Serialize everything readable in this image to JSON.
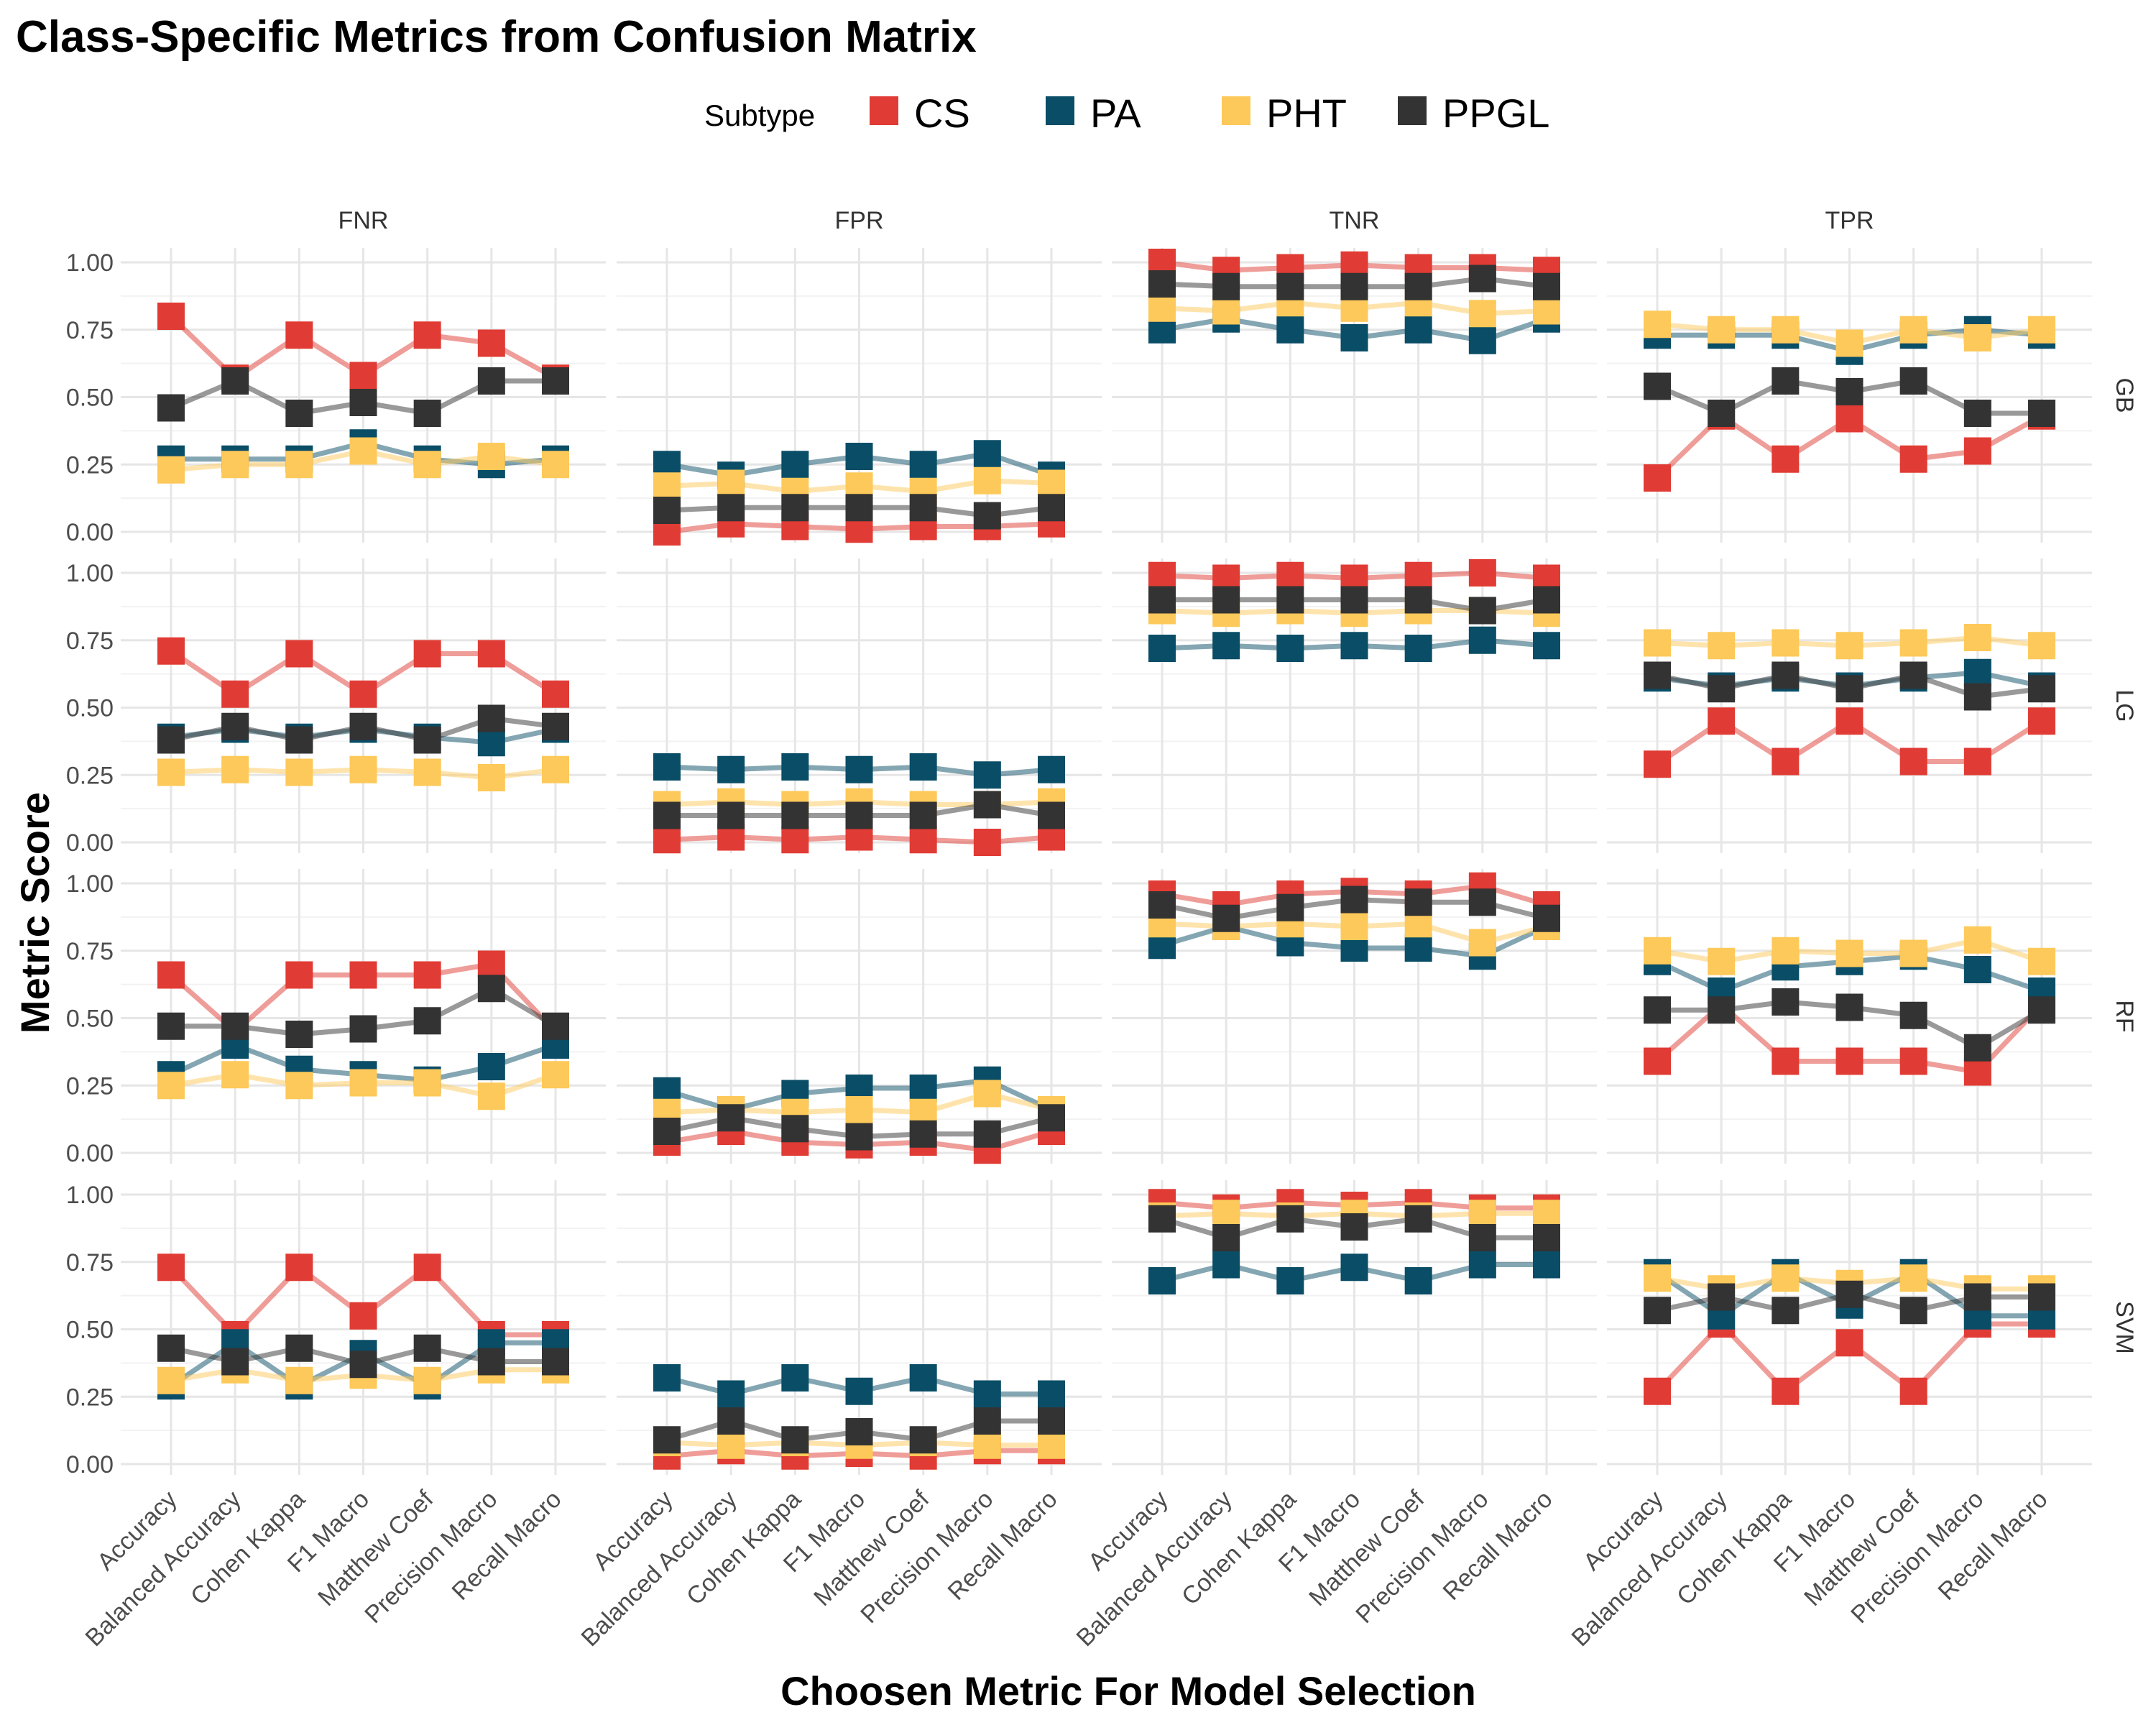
{
  "chart_data": {
    "type": "line",
    "title": "Class-Specific Metrics from Confusion Matrix",
    "xlabel": "Choosen Metric For Model Selection",
    "ylabel": "Metric Score",
    "ylim": [
      0,
      1
    ],
    "y_ticks": [
      "0.00",
      "0.25",
      "0.50",
      "0.75",
      "1.00"
    ],
    "grid": true,
    "legend": {
      "title": "Subtype",
      "placement": "top"
    },
    "categories": [
      "Accuracy",
      "Balanced Accuracy",
      "Cohen Kappa",
      "F1 Macro",
      "Matthew Coef",
      "Precision Macro",
      "Recall Macro"
    ],
    "facet_columns": [
      "FNR",
      "FPR",
      "TNR",
      "TPR"
    ],
    "facet_rows": [
      "GB",
      "LG",
      "RF",
      "SVM"
    ],
    "series": [
      {
        "name": "CS",
        "color": "#e03b34"
      },
      {
        "name": "PA",
        "color": "#0a4d66"
      },
      {
        "name": "PHT",
        "color": "#fdc95a"
      },
      {
        "name": "PPGL",
        "color": "#333333"
      }
    ],
    "values": {
      "GB": {
        "FNR": {
          "CS": [
            0.8,
            0.57,
            0.73,
            0.58,
            0.73,
            0.7,
            0.57
          ],
          "PA": [
            0.27,
            0.27,
            0.27,
            0.33,
            0.27,
            0.25,
            0.27
          ],
          "PHT": [
            0.23,
            0.25,
            0.25,
            0.3,
            0.25,
            0.28,
            0.25
          ],
          "PPGL": [
            0.46,
            0.56,
            0.44,
            0.48,
            0.44,
            0.56,
            0.56
          ]
        },
        "FPR": {
          "CS": [
            0.0,
            0.03,
            0.02,
            0.01,
            0.02,
            0.02,
            0.03
          ],
          "PA": [
            0.25,
            0.21,
            0.25,
            0.28,
            0.25,
            0.29,
            0.21
          ],
          "PHT": [
            0.17,
            0.18,
            0.15,
            0.17,
            0.15,
            0.19,
            0.18
          ],
          "PPGL": [
            0.08,
            0.09,
            0.09,
            0.09,
            0.09,
            0.06,
            0.09
          ]
        },
        "TNR": {
          "CS": [
            1.0,
            0.97,
            0.98,
            0.99,
            0.98,
            0.98,
            0.97
          ],
          "PA": [
            0.75,
            0.79,
            0.75,
            0.72,
            0.75,
            0.71,
            0.79
          ],
          "PHT": [
            0.83,
            0.82,
            0.85,
            0.83,
            0.85,
            0.81,
            0.82
          ],
          "PPGL": [
            0.92,
            0.91,
            0.91,
            0.91,
            0.91,
            0.94,
            0.91
          ]
        },
        "TPR": {
          "CS": [
            0.2,
            0.43,
            0.27,
            0.42,
            0.27,
            0.3,
            0.43
          ],
          "PA": [
            0.73,
            0.73,
            0.73,
            0.67,
            0.73,
            0.75,
            0.73
          ],
          "PHT": [
            0.77,
            0.75,
            0.75,
            0.7,
            0.75,
            0.72,
            0.75
          ],
          "PPGL": [
            0.54,
            0.44,
            0.56,
            0.52,
            0.56,
            0.44,
            0.44
          ]
        }
      },
      "LG": {
        "FNR": {
          "CS": [
            0.71,
            0.55,
            0.7,
            0.55,
            0.7,
            0.7,
            0.55
          ],
          "PA": [
            0.39,
            0.42,
            0.39,
            0.42,
            0.39,
            0.37,
            0.42
          ],
          "PHT": [
            0.26,
            0.27,
            0.26,
            0.27,
            0.26,
            0.24,
            0.27
          ],
          "PPGL": [
            0.38,
            0.43,
            0.38,
            0.43,
            0.38,
            0.46,
            0.43
          ]
        },
        "FPR": {
          "CS": [
            0.01,
            0.02,
            0.01,
            0.02,
            0.01,
            0.0,
            0.02
          ],
          "PA": [
            0.28,
            0.27,
            0.28,
            0.27,
            0.28,
            0.25,
            0.27
          ],
          "PHT": [
            0.14,
            0.15,
            0.14,
            0.15,
            0.14,
            0.14,
            0.15
          ],
          "PPGL": [
            0.1,
            0.1,
            0.1,
            0.1,
            0.1,
            0.14,
            0.1
          ]
        },
        "TNR": {
          "CS": [
            0.99,
            0.98,
            0.99,
            0.98,
            0.99,
            1.0,
            0.98
          ],
          "PA": [
            0.72,
            0.73,
            0.72,
            0.73,
            0.72,
            0.75,
            0.73
          ],
          "PHT": [
            0.86,
            0.85,
            0.86,
            0.85,
            0.86,
            0.86,
            0.85
          ],
          "PPGL": [
            0.9,
            0.9,
            0.9,
            0.9,
            0.9,
            0.86,
            0.9
          ]
        },
        "TPR": {
          "CS": [
            0.29,
            0.45,
            0.3,
            0.45,
            0.3,
            0.3,
            0.45
          ],
          "PA": [
            0.61,
            0.58,
            0.61,
            0.58,
            0.61,
            0.63,
            0.58
          ],
          "PHT": [
            0.74,
            0.73,
            0.74,
            0.73,
            0.74,
            0.76,
            0.73
          ],
          "PPGL": [
            0.62,
            0.57,
            0.62,
            0.57,
            0.62,
            0.54,
            0.57
          ]
        }
      },
      "RF": {
        "FNR": {
          "CS": [
            0.66,
            0.45,
            0.66,
            0.66,
            0.66,
            0.7,
            0.45
          ],
          "PA": [
            0.29,
            0.4,
            0.31,
            0.29,
            0.27,
            0.32,
            0.4
          ],
          "PHT": [
            0.25,
            0.29,
            0.25,
            0.26,
            0.26,
            0.21,
            0.29
          ],
          "PPGL": [
            0.47,
            0.47,
            0.44,
            0.46,
            0.49,
            0.61,
            0.47
          ]
        },
        "FPR": {
          "CS": [
            0.04,
            0.08,
            0.04,
            0.03,
            0.04,
            0.01,
            0.08
          ],
          "PA": [
            0.23,
            0.16,
            0.22,
            0.24,
            0.24,
            0.27,
            0.16
          ],
          "PHT": [
            0.15,
            0.16,
            0.15,
            0.16,
            0.15,
            0.22,
            0.16
          ],
          "PPGL": [
            0.08,
            0.13,
            0.09,
            0.06,
            0.07,
            0.07,
            0.13
          ]
        },
        "TNR": {
          "CS": [
            0.96,
            0.92,
            0.96,
            0.97,
            0.96,
            0.99,
            0.92
          ],
          "PA": [
            0.77,
            0.84,
            0.78,
            0.76,
            0.76,
            0.73,
            0.84
          ],
          "PHT": [
            0.85,
            0.84,
            0.85,
            0.84,
            0.85,
            0.78,
            0.84
          ],
          "PPGL": [
            0.92,
            0.87,
            0.91,
            0.94,
            0.93,
            0.93,
            0.87
          ]
        },
        "TPR": {
          "CS": [
            0.34,
            0.55,
            0.34,
            0.34,
            0.34,
            0.3,
            0.55
          ],
          "PA": [
            0.71,
            0.6,
            0.69,
            0.71,
            0.73,
            0.68,
            0.6
          ],
          "PHT": [
            0.75,
            0.71,
            0.75,
            0.74,
            0.74,
            0.79,
            0.71
          ],
          "PPGL": [
            0.53,
            0.53,
            0.56,
            0.54,
            0.51,
            0.39,
            0.53
          ]
        }
      },
      "SVM": {
        "FNR": {
          "CS": [
            0.73,
            0.48,
            0.73,
            0.55,
            0.73,
            0.48,
            0.48
          ],
          "PA": [
            0.29,
            0.45,
            0.29,
            0.41,
            0.29,
            0.45,
            0.45
          ],
          "PHT": [
            0.31,
            0.35,
            0.31,
            0.33,
            0.31,
            0.35,
            0.35
          ],
          "PPGL": [
            0.43,
            0.38,
            0.43,
            0.37,
            0.43,
            0.38,
            0.38
          ]
        },
        "FPR": {
          "CS": [
            0.03,
            0.05,
            0.03,
            0.04,
            0.03,
            0.05,
            0.05
          ],
          "PA": [
            0.32,
            0.26,
            0.32,
            0.27,
            0.32,
            0.26,
            0.26
          ],
          "PHT": [
            0.08,
            0.07,
            0.08,
            0.07,
            0.08,
            0.07,
            0.07
          ],
          "PPGL": [
            0.09,
            0.16,
            0.09,
            0.12,
            0.09,
            0.16,
            0.16
          ]
        },
        "TNR": {
          "CS": [
            0.97,
            0.95,
            0.97,
            0.96,
            0.97,
            0.95,
            0.95
          ],
          "PA": [
            0.68,
            0.74,
            0.68,
            0.73,
            0.68,
            0.74,
            0.74
          ],
          "PHT": [
            0.92,
            0.93,
            0.92,
            0.93,
            0.92,
            0.93,
            0.93
          ],
          "PPGL": [
            0.91,
            0.84,
            0.91,
            0.88,
            0.91,
            0.84,
            0.84
          ]
        },
        "TPR": {
          "CS": [
            0.27,
            0.52,
            0.27,
            0.45,
            0.27,
            0.52,
            0.52
          ],
          "PA": [
            0.71,
            0.55,
            0.71,
            0.59,
            0.71,
            0.55,
            0.55
          ],
          "PHT": [
            0.69,
            0.65,
            0.69,
            0.67,
            0.69,
            0.65,
            0.65
          ],
          "PPGL": [
            0.57,
            0.62,
            0.57,
            0.63,
            0.57,
            0.62,
            0.62
          ]
        }
      }
    }
  }
}
